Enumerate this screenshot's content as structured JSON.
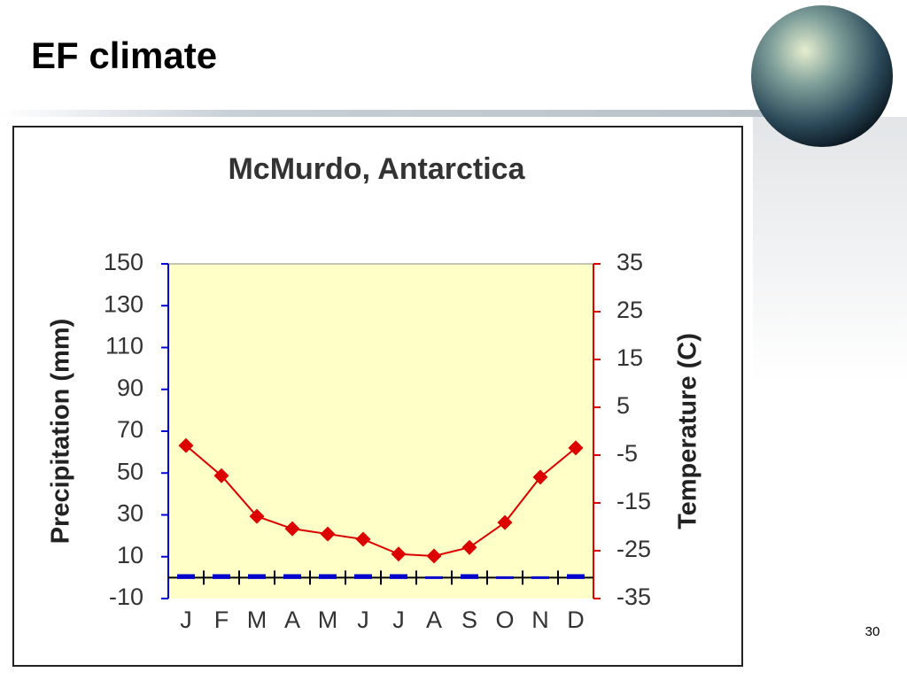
{
  "slide": {
    "title": "EF climate",
    "page_number": "30"
  },
  "chart_data": {
    "type": "climograph",
    "title": "McMurdo, Antarctica",
    "y_label": "Precipitation (mm)",
    "y2_label": "Temperature (C)",
    "categories": [
      "J",
      "F",
      "M",
      "A",
      "M",
      "J",
      "J",
      "A",
      "S",
      "O",
      "N",
      "D"
    ],
    "series": [
      {
        "type": "bar",
        "color": "#0000cc",
        "axis": "y",
        "values": [
          1,
          1,
          1,
          1,
          1,
          1,
          1,
          0,
          1,
          0,
          0,
          1
        ]
      },
      {
        "type": "line",
        "color": "#dd0000",
        "axis": "y2",
        "values": [
          -3.0,
          -9.3,
          -17.8,
          -20.4,
          -21.5,
          -22.6,
          -25.7,
          -26.1,
          -24.3,
          -19.1,
          -9.6,
          -3.5
        ]
      }
    ],
    "ylim": [
      -10,
      150
    ],
    "yticks": [
      -10,
      10,
      30,
      50,
      70,
      90,
      110,
      130,
      150
    ],
    "y2lim": [
      -35,
      35
    ],
    "y2ticks": [
      -35,
      -25,
      -15,
      -5,
      5,
      15,
      25,
      35
    ],
    "plot_background": "#ffffc8"
  }
}
